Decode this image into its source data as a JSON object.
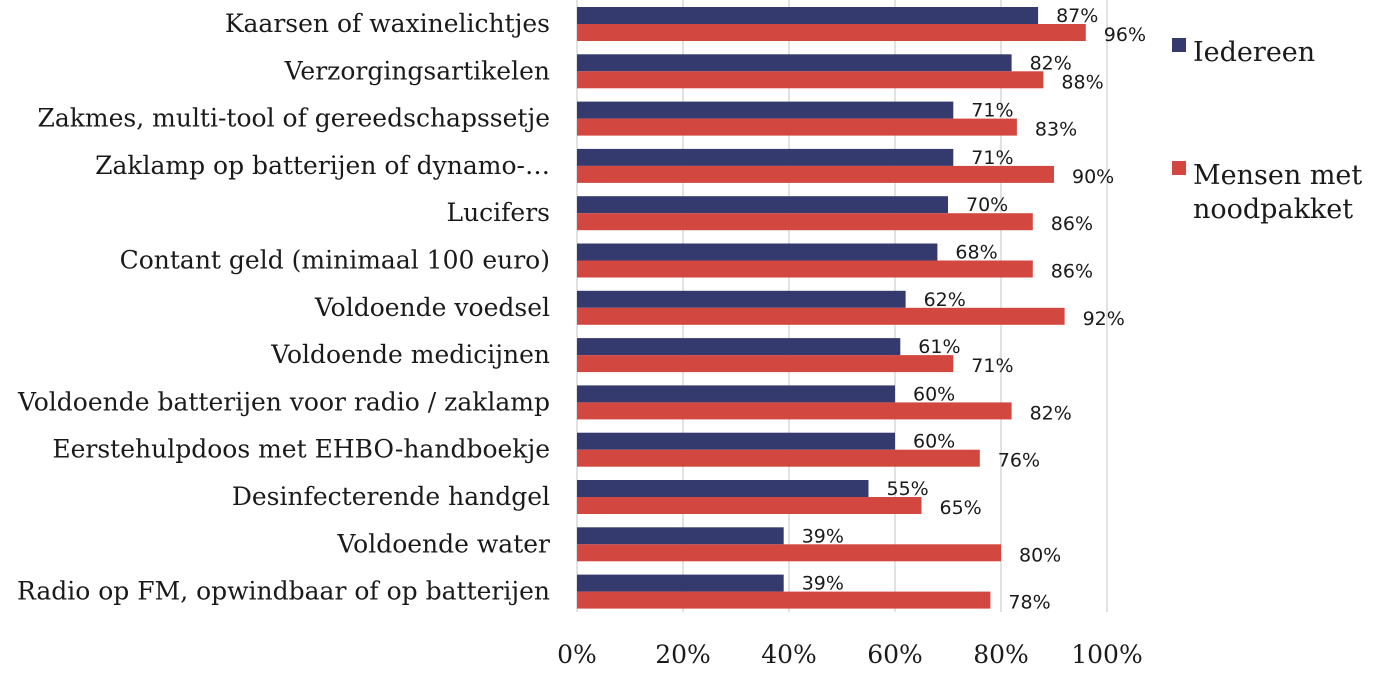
{
  "chart_data": {
    "type": "bar",
    "orientation": "horizontal",
    "categories": [
      "Kaarsen of waxinelichtjes",
      "Verzorgingsartikelen",
      "Zakmes, multi-tool of gereedschapssetje",
      "Zaklamp op batterijen of dynamo-…",
      "Lucifers",
      "Contant geld (minimaal 100 euro)",
      "Voldoende voedsel",
      "Voldoende medicijnen",
      "Voldoende batterijen voor radio / zaklamp",
      "Eerstehulpdoos met EHBO-handboekje",
      "Desinfecterende handgel",
      "Voldoende water",
      "Radio op FM, opwindbaar of op batterijen"
    ],
    "series": [
      {
        "name": "Iedereen",
        "color": "#353a6e",
        "values": [
          87,
          82,
          71,
          71,
          70,
          68,
          62,
          61,
          60,
          60,
          55,
          39,
          39
        ]
      },
      {
        "name": "Mensen met noodpakket",
        "color": "#d2473f",
        "values": [
          96,
          88,
          83,
          90,
          86,
          86,
          92,
          71,
          82,
          76,
          65,
          80,
          78
        ]
      }
    ],
    "value_labels": {
      "series_0": [
        "87%",
        "82%",
        "71%",
        "71%",
        "70%",
        "68%",
        "62%",
        "61%",
        "60%",
        "60%",
        "55%",
        "39%",
        "39%"
      ],
      "series_1": [
        "96%",
        "88%",
        "83%",
        "90%",
        "86%",
        "86%",
        "92%",
        "71%",
        "82%",
        "76%",
        "65%",
        "80%",
        "78%"
      ]
    },
    "x_ticks": [
      "0%",
      "20%",
      "40%",
      "60%",
      "80%",
      "100%"
    ],
    "xlim": [
      0,
      100
    ],
    "grid": true,
    "legend_position": "right",
    "legend_lines": [
      [
        "Iedereen"
      ],
      [
        "Mensen met",
        "noodpakket"
      ]
    ]
  }
}
